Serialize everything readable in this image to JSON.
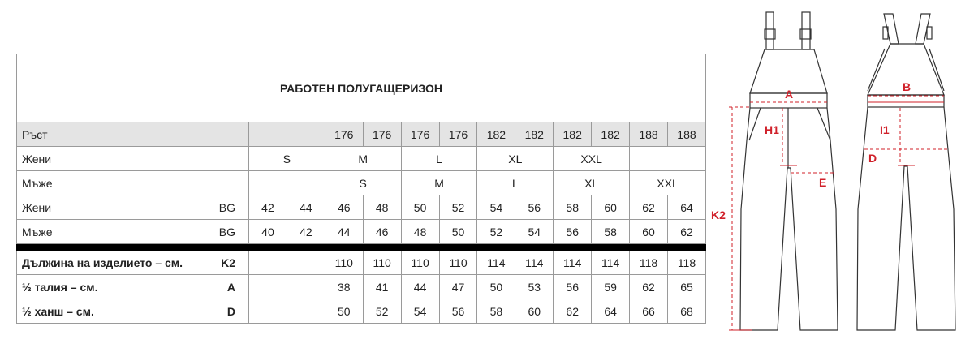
{
  "title": "РАБОТЕН ПОЛУГАЩЕРИЗОН",
  "rows": [
    {
      "label": "Ръст",
      "sub": "",
      "style": "gray",
      "cells": [
        {
          "t": "",
          "s": 1
        },
        {
          "t": "",
          "s": 1
        },
        {
          "t": "176",
          "s": 1
        },
        {
          "t": "176",
          "s": 1
        },
        {
          "t": "176",
          "s": 1
        },
        {
          "t": "176",
          "s": 1
        },
        {
          "t": "182",
          "s": 1
        },
        {
          "t": "182",
          "s": 1
        },
        {
          "t": "182",
          "s": 1
        },
        {
          "t": "182",
          "s": 1
        },
        {
          "t": "188",
          "s": 1
        },
        {
          "t": "188",
          "s": 1
        }
      ]
    },
    {
      "label": "Жени",
      "sub": "",
      "style": "",
      "cells": [
        {
          "t": "S",
          "s": 2
        },
        {
          "t": "M",
          "s": 2
        },
        {
          "t": "L",
          "s": 2
        },
        {
          "t": "XL",
          "s": 2
        },
        {
          "t": "XXL",
          "s": 2
        },
        {
          "t": "",
          "s": 2
        }
      ]
    },
    {
      "label": "Мъже",
      "sub": "",
      "style": "",
      "cells": [
        {
          "t": "",
          "s": 2
        },
        {
          "t": "S",
          "s": 2
        },
        {
          "t": "M",
          "s": 2
        },
        {
          "t": "L",
          "s": 2
        },
        {
          "t": "XL",
          "s": 2
        },
        {
          "t": "XXL",
          "s": 2
        }
      ]
    },
    {
      "label": "Жени",
      "sub": "BG",
      "style": "",
      "cells": [
        {
          "t": "42",
          "s": 1
        },
        {
          "t": "44",
          "s": 1
        },
        {
          "t": "46",
          "s": 1
        },
        {
          "t": "48",
          "s": 1
        },
        {
          "t": "50",
          "s": 1
        },
        {
          "t": "52",
          "s": 1
        },
        {
          "t": "54",
          "s": 1
        },
        {
          "t": "56",
          "s": 1
        },
        {
          "t": "58",
          "s": 1
        },
        {
          "t": "60",
          "s": 1
        },
        {
          "t": "62",
          "s": 1
        },
        {
          "t": "64",
          "s": 1
        }
      ]
    },
    {
      "label": "Мъже",
      "sub": "BG",
      "style": "",
      "cells": [
        {
          "t": "40",
          "s": 1
        },
        {
          "t": "42",
          "s": 1
        },
        {
          "t": "44",
          "s": 1
        },
        {
          "t": "46",
          "s": 1
        },
        {
          "t": "48",
          "s": 1
        },
        {
          "t": "50",
          "s": 1
        },
        {
          "t": "52",
          "s": 1
        },
        {
          "t": "54",
          "s": 1
        },
        {
          "t": "56",
          "s": 1
        },
        {
          "t": "58",
          "s": 1
        },
        {
          "t": "60",
          "s": 1
        },
        {
          "t": "62",
          "s": 1
        }
      ]
    },
    {
      "label": "",
      "sub": "",
      "style": "bar",
      "cells": [
        {
          "t": "",
          "s": 2
        },
        {
          "t": "",
          "s": 1
        },
        {
          "t": "",
          "s": 1
        },
        {
          "t": "",
          "s": 1
        },
        {
          "t": "",
          "s": 1
        },
        {
          "t": "",
          "s": 1
        },
        {
          "t": "",
          "s": 1
        },
        {
          "t": "",
          "s": 1
        },
        {
          "t": "",
          "s": 1
        },
        {
          "t": "",
          "s": 1
        },
        {
          "t": "",
          "s": 1
        }
      ]
    },
    {
      "label": "Дължина на изделието – см.",
      "sub": "K2",
      "style": "bold",
      "cells": [
        {
          "t": "",
          "s": 2
        },
        {
          "t": "110",
          "s": 1
        },
        {
          "t": "110",
          "s": 1
        },
        {
          "t": "110",
          "s": 1
        },
        {
          "t": "110",
          "s": 1
        },
        {
          "t": "114",
          "s": 1
        },
        {
          "t": "114",
          "s": 1
        },
        {
          "t": "114",
          "s": 1
        },
        {
          "t": "114",
          "s": 1
        },
        {
          "t": "118",
          "s": 1
        },
        {
          "t": "118",
          "s": 1
        }
      ]
    },
    {
      "label": "½ талия – см.",
      "sub": "A",
      "style": "bold",
      "cells": [
        {
          "t": "",
          "s": 2
        },
        {
          "t": "38",
          "s": 1
        },
        {
          "t": "41",
          "s": 1
        },
        {
          "t": "44",
          "s": 1
        },
        {
          "t": "47",
          "s": 1
        },
        {
          "t": "50",
          "s": 1
        },
        {
          "t": "53",
          "s": 1
        },
        {
          "t": "56",
          "s": 1
        },
        {
          "t": "59",
          "s": 1
        },
        {
          "t": "62",
          "s": 1
        },
        {
          "t": "65",
          "s": 1
        }
      ]
    },
    {
      "label": "½ ханш – см.",
      "sub": "D",
      "style": "bold",
      "cells": [
        {
          "t": "",
          "s": 2
        },
        {
          "t": "50",
          "s": 1
        },
        {
          "t": "52",
          "s": 1
        },
        {
          "t": "54",
          "s": 1
        },
        {
          "t": "56",
          "s": 1
        },
        {
          "t": "58",
          "s": 1
        },
        {
          "t": "60",
          "s": 1
        },
        {
          "t": "62",
          "s": 1
        },
        {
          "t": "64",
          "s": 1
        },
        {
          "t": "66",
          "s": 1
        },
        {
          "t": "68",
          "s": 1
        }
      ]
    }
  ],
  "diagram": {
    "labels": {
      "A": "A",
      "B": "B",
      "H1": "H1",
      "I1": "I1",
      "D": "D",
      "E": "E",
      "K2": "K2"
    },
    "accent_color": "#d0202a",
    "outline_color": "#333333"
  }
}
